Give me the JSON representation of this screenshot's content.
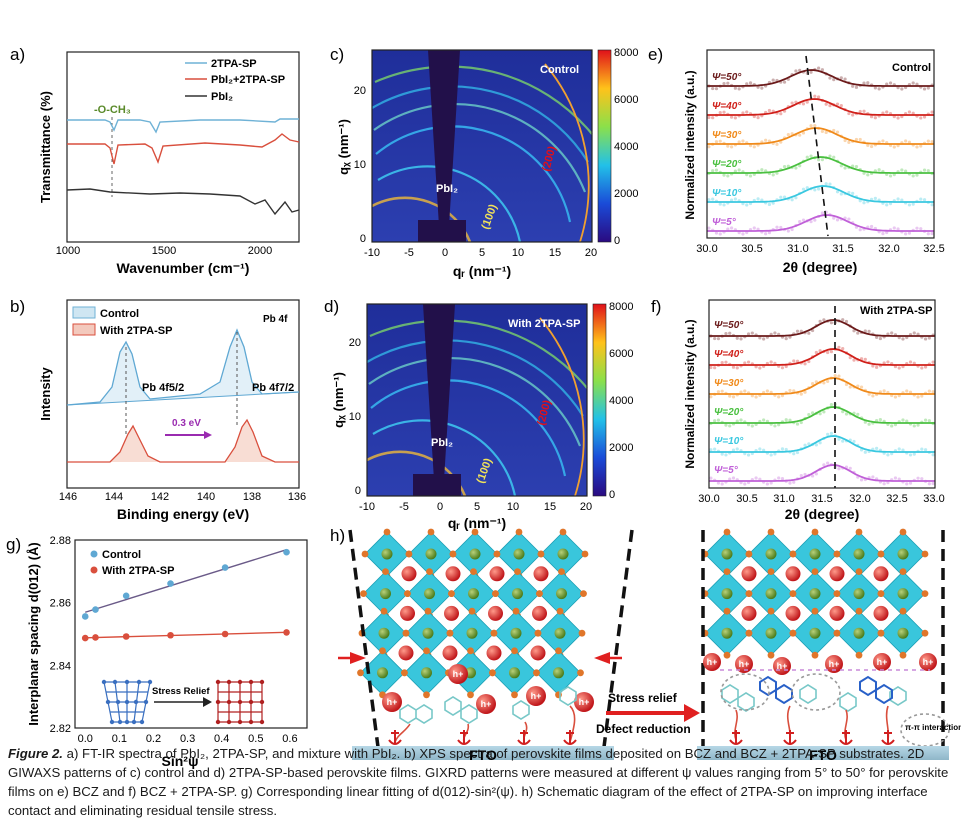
{
  "caption": {
    "lead": "Figure 2.",
    "text": " a) FT-IR spectra of PbI₂, 2TPA-SP, and mixture with PbI₂. b) XPS spectra of perovskite films deposited on BCZ and BCZ + 2TPA-SP substrates. 2D GIWAXS patterns of c) control and d) 2TPA-SP-based perovskite films. GIXRD patterns were measured at different ψ values ranging from 5° to 50° for perovskite films on e) BCZ and f) BCZ + 2TPA-SP. g) Corresponding linear fitting of d(012)-sin²(ψ). h) Schematic diagram of the effect of 2TPA-SP on improving interface contact and eliminating residual tensile stress."
  },
  "panels": {
    "a": {
      "letter": "a)",
      "xlabel": "Wavenumber (cm⁻¹)",
      "ylabel": "Transmittance (%)",
      "annotation": "-O-CH₃",
      "legend": [
        "2TPA-SP",
        "PbI₂+2TPA-SP",
        "PbI₂"
      ],
      "xticks": [
        "1000",
        "1500",
        "2000"
      ]
    },
    "b": {
      "letter": "b)",
      "xlabel": "Binding energy (eV)",
      "ylabel": "Intensity",
      "tag": "Pb 4f",
      "legend": [
        "Control",
        "With 2TPA-SP"
      ],
      "peak1": "Pb 4f5/2",
      "peak2": "Pb 4f7/2",
      "shift": "0.3 eV",
      "xticks": [
        "146",
        "144",
        "142",
        "140",
        "138",
        "136"
      ]
    },
    "c": {
      "letter": "c)",
      "title": "Control",
      "xlabel": "qᵣ (nm⁻¹)",
      "ylabel": "qᵪ (nm⁻¹)",
      "ring1": "(100)",
      "ring2": "(200)",
      "pbi2": "PbI₂",
      "cbar": [
        "8000",
        "6000",
        "4000",
        "2000",
        "0"
      ],
      "xticks": [
        "-10",
        "-5",
        "0",
        "5",
        "10",
        "15",
        "20"
      ],
      "yticks": [
        "20",
        "10",
        "0"
      ]
    },
    "d": {
      "letter": "d)",
      "title": "With 2TPA-SP",
      "xlabel": "qᵣ (nm⁻¹)",
      "ylabel": "qᵪ (nm⁻¹)",
      "ring1": "(100)",
      "ring2": "(200)",
      "pbi2": "PbI₂",
      "cbar": [
        "8000",
        "6000",
        "4000",
        "2000",
        "0"
      ],
      "xticks": [
        "-10",
        "-5",
        "0",
        "5",
        "10",
        "15",
        "20"
      ],
      "yticks": [
        "20",
        "10",
        "0"
      ]
    },
    "e": {
      "letter": "e)",
      "title": "Control",
      "xlabel": "2θ (degree)",
      "ylabel": "Normalized intensity (a.u.)",
      "psi": [
        "Ψ=50°",
        "Ψ=40°",
        "Ψ=30°",
        "Ψ=20°",
        "Ψ=10°",
        "Ψ=5°"
      ],
      "xticks": [
        "30.0",
        "30.5",
        "31.0",
        "31.5",
        "32.0",
        "32.5"
      ]
    },
    "f": {
      "letter": "f)",
      "title": "With 2TPA-SP",
      "xlabel": "2θ (degree)",
      "ylabel": "Normalized intensity (a.u.)",
      "psi": [
        "Ψ=50°",
        "Ψ=40°",
        "Ψ=30°",
        "Ψ=20°",
        "Ψ=10°",
        "Ψ=5°"
      ],
      "xticks": [
        "30.0",
        "30.5",
        "31.0",
        "31.5",
        "32.0",
        "32.5",
        "33.0"
      ]
    },
    "g": {
      "letter": "g)",
      "xlabel": "Sin²ψ",
      "ylabel": "Interplanar spacing d(012) (Å)",
      "legend": [
        "Control",
        "With 2TPA-SP"
      ],
      "inset": "Stress Relief",
      "xticks": [
        "0.0",
        "0.1",
        "0.2",
        "0.3",
        "0.4",
        "0.5",
        "0.6"
      ],
      "yticks": [
        "2.88",
        "2.86",
        "2.84",
        "2.82"
      ]
    },
    "h": {
      "letter": "h)",
      "fto_left": "FTO",
      "fto_right": "FTO",
      "arrow1": "Stress relief",
      "arrow2": "Defect reduction",
      "pipi": "π-π interaction",
      "hplus": "h+"
    }
  },
  "colors": {
    "control": "#5fa8d3",
    "with": "#d94f3d",
    "pbi2": "#333333",
    "octa": "#39c6dc"
  },
  "chart_data": [
    {
      "type": "line",
      "id": "g",
      "x": [
        0.0,
        0.03,
        0.12,
        0.25,
        0.41,
        0.59
      ],
      "series": [
        {
          "name": "Control",
          "values": [
            2.8556,
            2.8578,
            2.8622,
            2.8661,
            2.8712,
            2.8761
          ]
        },
        {
          "name": "With 2TPA-SP",
          "values": [
            2.8487,
            2.8489,
            2.8492,
            2.8496,
            2.85,
            2.8505
          ]
        }
      ],
      "ylim": [
        2.82,
        2.88
      ],
      "xlim": [
        -0.03,
        0.65
      ]
    },
    {
      "type": "line",
      "id": "e",
      "psi_deg": [
        50,
        40,
        30,
        20,
        10,
        5
      ],
      "peak_2theta": [
        31.15,
        31.18,
        31.2,
        31.25,
        31.28,
        31.32
      ],
      "xlim": [
        30.0,
        32.5
      ]
    },
    {
      "type": "line",
      "id": "f",
      "psi_deg": [
        50,
        40,
        30,
        20,
        10,
        5
      ],
      "peak_2theta": [
        31.65,
        31.65,
        31.65,
        31.65,
        31.65,
        31.65
      ],
      "xlim": [
        30.0,
        33.0
      ]
    },
    {
      "type": "line",
      "id": "b",
      "series": [
        {
          "name": "Control",
          "peaks_eV": [
            143.7,
            138.8
          ]
        },
        {
          "name": "With 2TPA-SP",
          "peaks_eV": [
            143.4,
            138.5
          ]
        }
      ],
      "xlim": [
        146,
        136
      ]
    }
  ]
}
